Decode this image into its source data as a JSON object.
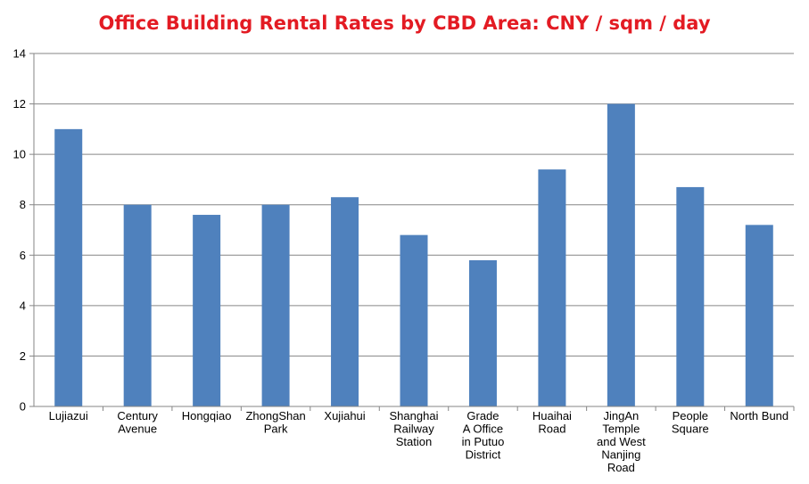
{
  "chart_data": {
    "type": "bar",
    "title": "Office Building Rental Rates by CBD Area: CNY / sqm / day",
    "xlabel": "",
    "ylabel": "",
    "ylim": [
      0,
      14
    ],
    "yticks": [
      0,
      2,
      4,
      6,
      8,
      10,
      12,
      14
    ],
    "grid": true,
    "categories": [
      "Lujiazui",
      "Century Avenue",
      "Hongqiao",
      "ZhongShan Park",
      "Xujiahui",
      "Shanghai Railway Station",
      "Grade A Office in Putuo District",
      "Huaihai Road",
      "JingAn Temple and West Nanjing Road",
      "People Square",
      "North Bund"
    ],
    "category_lines": [
      [
        "Lujiazui"
      ],
      [
        "Century",
        "Avenue"
      ],
      [
        "Hongqiao"
      ],
      [
        "ZhongShan",
        "Park"
      ],
      [
        "Xujiahui"
      ],
      [
        "Shanghai",
        "Railway",
        "Station"
      ],
      [
        "Grade",
        "A Office",
        "in Putuo",
        "District"
      ],
      [
        "Huaihai",
        "Road"
      ],
      [
        "JingAn",
        "Temple",
        "and West",
        "Nanjing",
        "Road"
      ],
      [
        "People",
        "Square"
      ],
      [
        "North Bund"
      ]
    ],
    "values": [
      11,
      8,
      7.6,
      8,
      8.3,
      6.8,
      5.8,
      9.4,
      12,
      8.7,
      7.2
    ],
    "bar_color": "#4f81bd"
  }
}
